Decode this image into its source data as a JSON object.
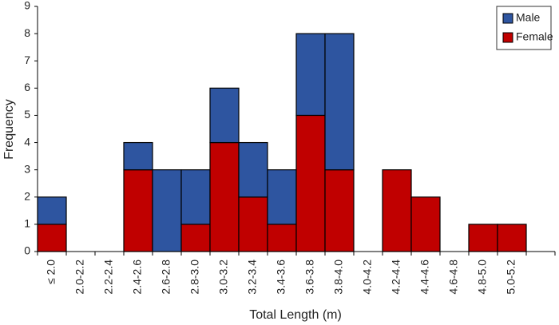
{
  "chart_data": {
    "type": "bar",
    "stacked": true,
    "x_label": "Total Length (m)",
    "y_label": "Frequency",
    "categories": [
      "≤ 2.0",
      "2.0-2.2",
      "2.2-2.4",
      "2.4-2.6",
      "2.6-2.8",
      "2.8-3.0",
      "3.0-3.2",
      "3.2-3.4",
      "3.4-3.6",
      "3.6-3.8",
      "3.8-4.0",
      "4.0-4.2",
      "4.2-4.4",
      "4.4-4.6",
      "4.6-4.8",
      "4.8-5.0",
      "5.0-5.2"
    ],
    "series": [
      {
        "name": "Male",
        "color": "#2e55a0",
        "values": [
          1,
          0,
          0,
          1,
          3,
          2,
          2,
          2,
          2,
          3,
          5,
          0,
          0,
          0,
          0,
          0,
          0
        ]
      },
      {
        "name": "Female",
        "color": "#c00000",
        "values": [
          1,
          0,
          0,
          3,
          0,
          1,
          4,
          2,
          1,
          5,
          3,
          0,
          3,
          2,
          0,
          1,
          1
        ]
      }
    ],
    "ylim": [
      0,
      9
    ],
    "yticks": [
      0,
      1,
      2,
      3,
      4,
      5,
      6,
      7,
      8,
      9
    ],
    "legend": "upper right"
  }
}
